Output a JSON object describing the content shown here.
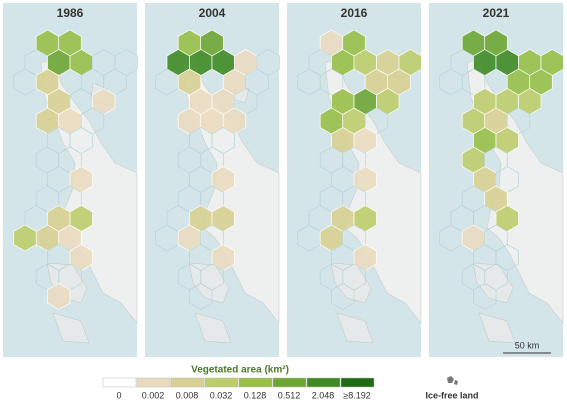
{
  "panels": [
    {
      "title": "1986"
    },
    {
      "title": "2004"
    },
    {
      "title": "2016"
    },
    {
      "title": "2021"
    }
  ],
  "scale_bar": "50 km",
  "legend": {
    "title": "Vegetated area (km²)",
    "items": [
      {
        "label": "0",
        "color": "#ffffff"
      },
      {
        "label": "0.002",
        "color": "#eadbc0"
      },
      {
        "label": "0.008",
        "color": "#d8cf92"
      },
      {
        "label": "0.032",
        "color": "#bccd6b"
      },
      {
        "label": "0.128",
        "color": "#98bf48"
      },
      {
        "label": "0.512",
        "color": "#6da534"
      },
      {
        "label": "2.048",
        "color": "#3f8a25"
      },
      {
        "label": "≥8.192",
        "color": "#1f6b14"
      }
    ],
    "ice_free": "Ice-free land"
  }
}
